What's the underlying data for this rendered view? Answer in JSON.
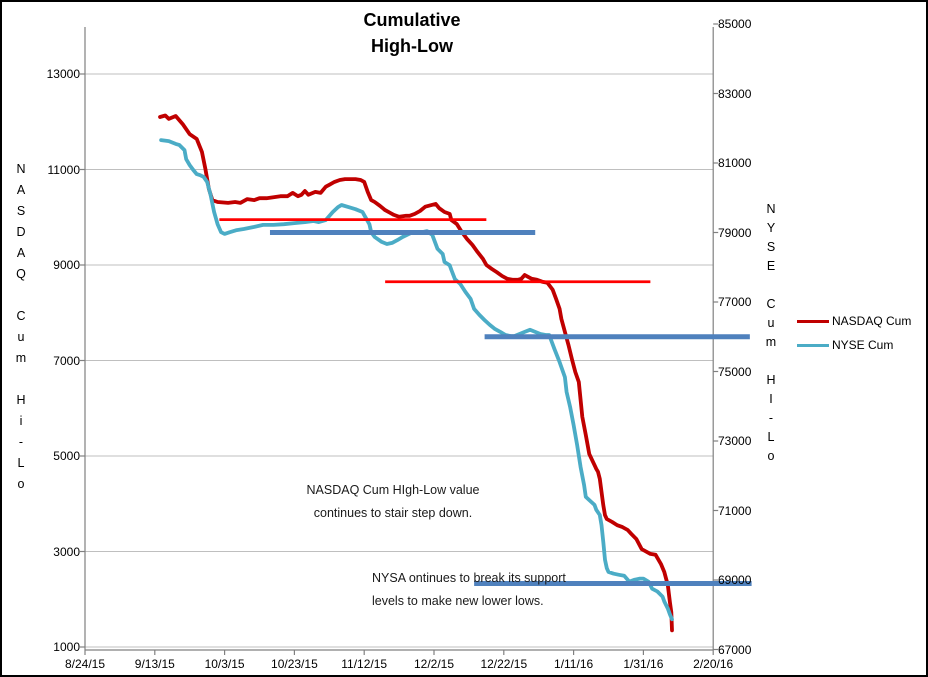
{
  "window": {
    "background": "#FFFFFF",
    "border_color": "#000000"
  },
  "chart_data": {
    "type": "line",
    "title": "Cumulative High-Low",
    "title_lines": [
      "Cumulative",
      "High-Low"
    ],
    "x_unit": "days since 8/24/15 (one gridline = 20 days)",
    "x_axis": {
      "tick_labels": [
        "8/24/15",
        "9/13/15",
        "10/3/15",
        "10/23/15",
        "11/12/15",
        "12/2/15",
        "12/22/15",
        "1/11/16",
        "1/31/16",
        "2/20/16"
      ],
      "tick_days": [
        0,
        20,
        40,
        60,
        80,
        100,
        120,
        140,
        160,
        180
      ]
    },
    "left_axis": {
      "title": "NASDAQ Cum Hi-Lo",
      "tick_values": [
        13000,
        11000,
        9000,
        7000,
        5000,
        3000,
        1000
      ],
      "range": [
        1000,
        13000
      ]
    },
    "right_axis": {
      "title": "NYSE Cum HI-Lo",
      "tick_values": [
        85000,
        83000,
        81000,
        79000,
        77000,
        75000,
        73000,
        71000,
        69000,
        67000
      ],
      "range": [
        67000,
        85000
      ]
    },
    "grid": true,
    "legend_position": "right",
    "colors": {
      "gridline": "#BFBFBF",
      "axis": "#808080",
      "nasdaq": "#C00000",
      "nyse": "#4BACC6",
      "support_red": "#FF0000",
      "support_blue": "#4F81BD"
    },
    "series": [
      {
        "name": "NASDAQ Cum",
        "axis": "left",
        "color": "#C00000",
        "width": 3.8,
        "points": [
          [
            21.5,
            12100
          ],
          [
            23,
            12130
          ],
          [
            24,
            12060
          ],
          [
            26,
            12120
          ],
          [
            28,
            11950
          ],
          [
            30,
            11740
          ],
          [
            32,
            11640
          ],
          [
            33.5,
            11370
          ],
          [
            34.5,
            11010
          ],
          [
            35.5,
            10590
          ],
          [
            36.5,
            10360
          ],
          [
            38,
            10320
          ],
          [
            41,
            10300
          ],
          [
            43,
            10320
          ],
          [
            44.5,
            10300
          ],
          [
            46.5,
            10380
          ],
          [
            48.5,
            10360
          ],
          [
            50,
            10400
          ],
          [
            52,
            10400
          ],
          [
            54,
            10420
          ],
          [
            56,
            10440
          ],
          [
            58,
            10440
          ],
          [
            59.5,
            10510
          ],
          [
            61,
            10440
          ],
          [
            62,
            10470
          ],
          [
            63,
            10550
          ],
          [
            64,
            10470
          ],
          [
            66,
            10530
          ],
          [
            67.5,
            10510
          ],
          [
            69,
            10640
          ],
          [
            70,
            10680
          ],
          [
            71.5,
            10740
          ],
          [
            73,
            10780
          ],
          [
            74.5,
            10800
          ],
          [
            76,
            10800
          ],
          [
            77.5,
            10800
          ],
          [
            79,
            10780
          ],
          [
            80,
            10740
          ],
          [
            81,
            10530
          ],
          [
            82,
            10360
          ],
          [
            83,
            10320
          ],
          [
            84.5,
            10240
          ],
          [
            86,
            10150
          ],
          [
            87.5,
            10090
          ],
          [
            88.5,
            10050
          ],
          [
            90,
            10010
          ],
          [
            92,
            10030
          ],
          [
            93,
            10030
          ],
          [
            94.5,
            10070
          ],
          [
            96,
            10130
          ],
          [
            97.5,
            10220
          ],
          [
            99.5,
            10260
          ],
          [
            100.5,
            10280
          ],
          [
            101.5,
            10190
          ],
          [
            103,
            10110
          ],
          [
            104.5,
            10070
          ],
          [
            105,
            9940
          ],
          [
            106.5,
            9860
          ],
          [
            108,
            9690
          ],
          [
            109.5,
            9540
          ],
          [
            111,
            9420
          ],
          [
            112.5,
            9270
          ],
          [
            114,
            9130
          ],
          [
            115,
            9000
          ],
          [
            116.5,
            8920
          ],
          [
            118,
            8850
          ],
          [
            119.5,
            8770
          ],
          [
            121,
            8710
          ],
          [
            122.5,
            8690
          ],
          [
            124,
            8690
          ],
          [
            125,
            8710
          ],
          [
            126,
            8790
          ],
          [
            127,
            8750
          ],
          [
            128,
            8710
          ],
          [
            129.5,
            8690
          ],
          [
            131,
            8650
          ],
          [
            132.5,
            8630
          ],
          [
            134,
            8480
          ],
          [
            135,
            8290
          ],
          [
            136,
            8080
          ],
          [
            136.5,
            7870
          ],
          [
            137.5,
            7600
          ],
          [
            138.5,
            7330
          ],
          [
            139.5,
            7030
          ],
          [
            140.5,
            6760
          ],
          [
            141.5,
            6550
          ],
          [
            142.5,
            5820
          ],
          [
            143.5,
            5440
          ],
          [
            144.5,
            5040
          ],
          [
            146,
            4810
          ],
          [
            146.5,
            4730
          ],
          [
            147,
            4670
          ],
          [
            147.5,
            4520
          ],
          [
            148,
            4250
          ],
          [
            148.5,
            3970
          ],
          [
            149,
            3760
          ],
          [
            149.5,
            3680
          ],
          [
            151,
            3620
          ],
          [
            152.5,
            3550
          ],
          [
            154,
            3510
          ],
          [
            155.5,
            3450
          ],
          [
            156.5,
            3370
          ],
          [
            158,
            3260
          ],
          [
            159.5,
            3050
          ],
          [
            160.5,
            3010
          ],
          [
            162,
            2950
          ],
          [
            163.5,
            2930
          ],
          [
            165,
            2740
          ],
          [
            166,
            2570
          ],
          [
            166.5,
            2430
          ],
          [
            167,
            2300
          ],
          [
            167.3,
            2110
          ],
          [
            167.6,
            1940
          ],
          [
            168,
            1730
          ],
          [
            168.2,
            1350
          ]
        ]
      },
      {
        "name": "NYSE Cum",
        "axis": "right",
        "color": "#4BACC6",
        "width": 3.8,
        "points": [
          [
            21.8,
            81660
          ],
          [
            24,
            81630
          ],
          [
            26,
            81550
          ],
          [
            27,
            81520
          ],
          [
            28.5,
            81370
          ],
          [
            29,
            81110
          ],
          [
            30,
            80940
          ],
          [
            31,
            80800
          ],
          [
            32,
            80680
          ],
          [
            33,
            80650
          ],
          [
            34,
            80600
          ],
          [
            35,
            80450
          ],
          [
            36,
            80080
          ],
          [
            37,
            79590
          ],
          [
            38,
            79240
          ],
          [
            39,
            79010
          ],
          [
            40,
            78960
          ],
          [
            41.5,
            79010
          ],
          [
            43.5,
            79070
          ],
          [
            45.5,
            79100
          ],
          [
            48.5,
            79160
          ],
          [
            51,
            79220
          ],
          [
            54,
            79220
          ],
          [
            57,
            79240
          ],
          [
            60,
            79270
          ],
          [
            63,
            79300
          ],
          [
            65.5,
            79330
          ],
          [
            67,
            79300
          ],
          [
            69,
            79360
          ],
          [
            71,
            79590
          ],
          [
            72.5,
            79730
          ],
          [
            73.5,
            79790
          ],
          [
            75.5,
            79730
          ],
          [
            77.5,
            79670
          ],
          [
            79.5,
            79590
          ],
          [
            80,
            79500
          ],
          [
            81.5,
            79240
          ],
          [
            82,
            79010
          ],
          [
            83,
            78870
          ],
          [
            85,
            78730
          ],
          [
            86.5,
            78670
          ],
          [
            88,
            78700
          ],
          [
            89.5,
            78780
          ],
          [
            91,
            78870
          ],
          [
            93.5,
            78990
          ],
          [
            96.5,
            79010
          ],
          [
            98,
            79040
          ],
          [
            99.5,
            78930
          ],
          [
            101,
            78530
          ],
          [
            102.5,
            78380
          ],
          [
            103,
            78150
          ],
          [
            104.5,
            78060
          ],
          [
            105,
            77920
          ],
          [
            106,
            77660
          ],
          [
            107.5,
            77520
          ],
          [
            109,
            77290
          ],
          [
            110.5,
            77090
          ],
          [
            111.5,
            76800
          ],
          [
            113,
            76630
          ],
          [
            114.5,
            76480
          ],
          [
            116,
            76340
          ],
          [
            117.5,
            76220
          ],
          [
            119,
            76140
          ],
          [
            120.5,
            76050
          ],
          [
            122,
            76020
          ],
          [
            123,
            76020
          ],
          [
            124.5,
            76080
          ],
          [
            126,
            76140
          ],
          [
            127.5,
            76200
          ],
          [
            129,
            76140
          ],
          [
            130.5,
            76080
          ],
          [
            132,
            76050
          ],
          [
            133,
            76050
          ],
          [
            134.5,
            75650
          ],
          [
            136,
            75270
          ],
          [
            137.5,
            74840
          ],
          [
            138,
            74410
          ],
          [
            139,
            73980
          ],
          [
            140,
            73460
          ],
          [
            141,
            72890
          ],
          [
            142,
            72250
          ],
          [
            143,
            71730
          ],
          [
            143.5,
            71390
          ],
          [
            144.5,
            71300
          ],
          [
            146,
            71160
          ],
          [
            146.5,
            71020
          ],
          [
            147.5,
            70870
          ],
          [
            148,
            70580
          ],
          [
            148.5,
            70090
          ],
          [
            149,
            69580
          ],
          [
            149.5,
            69340
          ],
          [
            150,
            69230
          ],
          [
            151.5,
            69180
          ],
          [
            153,
            69150
          ],
          [
            154.5,
            69120
          ],
          [
            156,
            68950
          ],
          [
            157.5,
            69010
          ],
          [
            159,
            69040
          ],
          [
            160,
            69040
          ],
          [
            161.5,
            68950
          ],
          [
            162.5,
            68750
          ],
          [
            164,
            68670
          ],
          [
            165.5,
            68520
          ],
          [
            166,
            68380
          ],
          [
            167,
            68180
          ],
          [
            167.6,
            68010
          ],
          [
            168.2,
            67870
          ]
        ]
      }
    ],
    "support_lines": [
      {
        "name": "nasdaq-support-1",
        "axis": "left",
        "color": "#FF0000",
        "width": 2.8,
        "value": 9950,
        "day_start": 38.5,
        "day_end": 115
      },
      {
        "name": "nasdaq-support-2",
        "axis": "left",
        "color": "#FF0000",
        "width": 2.8,
        "value": 8650,
        "day_start": 86,
        "day_end": 162
      },
      {
        "name": "nyse-support-1",
        "axis": "right",
        "color": "#4F81BD",
        "width": 5,
        "value": 79000,
        "day_start": 53,
        "day_end": 129
      },
      {
        "name": "nyse-support-2",
        "axis": "right",
        "color": "#4F81BD",
        "width": 5,
        "value": 76000,
        "day_start": 114.5,
        "day_end": 190.5
      },
      {
        "name": "nyse-support-3",
        "axis": "right",
        "color": "#4F81BD",
        "width": 5,
        "value": 68900,
        "day_start": 111.5,
        "day_end": 191
      }
    ],
    "annotations": [
      {
        "lines": [
          "NASDAQ Cum HIgh-Low value",
          "continues to stair step down."
        ]
      },
      {
        "lines": [
          "NYSA ontinues to break its support",
          "levels to make new lower lows."
        ]
      }
    ],
    "legend": {
      "entries": [
        {
          "label": "NASDAQ Cum",
          "color": "#C00000"
        },
        {
          "label": "NYSE Cum",
          "color": "#4BACC6"
        }
      ]
    }
  }
}
